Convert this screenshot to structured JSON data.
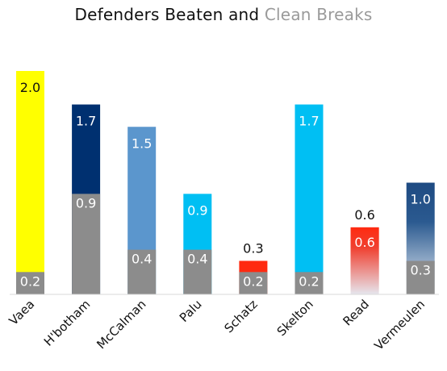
{
  "chart_data": {
    "type": "bar",
    "title": "Defenders Beaten and",
    "title_accent": "Clean Breaks",
    "categories": [
      "Vaea",
      "H'botham",
      "McCalman",
      "Palu",
      "Schatz",
      "Skelton",
      "Read",
      "Vermeulen"
    ],
    "series": [
      {
        "name": "Defenders Beaten",
        "values": [
          2.0,
          1.7,
          1.5,
          0.9,
          0.3,
          1.7,
          0.6,
          1.0
        ],
        "labels": [
          "2.0",
          "1.7",
          "1.5",
          "0.9",
          "0.3",
          "1.7",
          "0.6",
          "1.0"
        ]
      },
      {
        "name": "Clean Breaks",
        "values": [
          0.2,
          0.9,
          0.4,
          0.4,
          0.2,
          0.2,
          0.6,
          0.3
        ],
        "labels": [
          "0.2",
          "0.9",
          "0.4",
          "0.4",
          "0.2",
          "0.2",
          "0.6",
          "0.3"
        ]
      }
    ],
    "bar_colors": [
      "#ffff00",
      "#003070",
      "#5b96cd",
      "#00bff3",
      "#ff2a10",
      "#00bff3",
      "#ff2a10",
      "#1e4a82"
    ],
    "clean_break_color": "#8c8c8c",
    "title_accent_color": "#9a9a9a",
    "ylim": [
      0,
      2.0
    ],
    "xlabel": "",
    "ylabel": "",
    "grid": false,
    "legend": "none"
  }
}
